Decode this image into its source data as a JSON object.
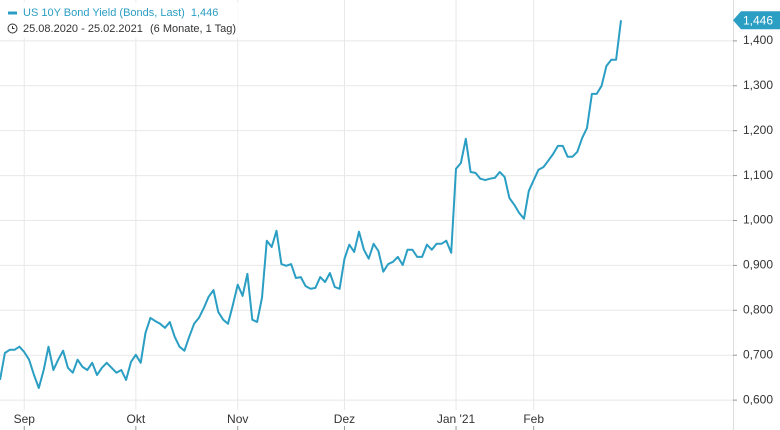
{
  "chart_data": {
    "type": "line",
    "period": "25.08.2020 - 25.02.2021",
    "period_note": "(6 Monate, 1 Tag)",
    "legend_value": "1,446",
    "categories": [
      null,
      null,
      null,
      null,
      null,
      "Sep",
      null,
      null,
      null,
      null,
      null,
      null,
      null,
      null,
      null,
      null,
      null,
      null,
      null,
      null,
      null,
      null,
      null,
      null,
      null,
      null,
      null,
      null,
      "Okt",
      null,
      null,
      null,
      null,
      null,
      null,
      null,
      null,
      null,
      null,
      null,
      null,
      null,
      null,
      null,
      null,
      null,
      null,
      null,
      null,
      "Nov",
      null,
      null,
      null,
      null,
      null,
      null,
      null,
      null,
      null,
      null,
      null,
      null,
      null,
      null,
      null,
      null,
      null,
      null,
      null,
      null,
      null,
      "Dez",
      null,
      null,
      null,
      null,
      null,
      null,
      null,
      null,
      null,
      null,
      null,
      null,
      null,
      null,
      null,
      null,
      null,
      null,
      null,
      null,
      null,
      null,
      "Jan '21",
      null,
      null,
      null,
      null,
      null,
      null,
      null,
      null,
      null,
      null,
      null,
      null,
      null,
      null,
      null,
      "Feb",
      null,
      null,
      null,
      null,
      null,
      null,
      null,
      null,
      null,
      null,
      null,
      null,
      null,
      null,
      null,
      null,
      null,
      null
    ],
    "series": [
      {
        "name": "US 10Y Bond Yield (Bonds, Last)",
        "color": "#2b9ec3",
        "values": [
          0.645,
          0.705,
          0.712,
          0.712,
          0.719,
          0.707,
          0.69,
          0.656,
          0.627,
          0.667,
          0.719,
          0.667,
          0.69,
          0.71,
          0.672,
          0.661,
          0.69,
          0.674,
          0.667,
          0.683,
          0.656,
          0.672,
          0.683,
          0.672,
          0.661,
          0.667,
          0.645,
          0.685,
          0.701,
          0.683,
          0.75,
          0.783,
          0.776,
          0.77,
          0.761,
          0.774,
          0.741,
          0.719,
          0.71,
          0.741,
          0.77,
          0.783,
          0.805,
          0.83,
          0.845,
          0.796,
          0.779,
          0.77,
          0.812,
          0.857,
          0.832,
          0.881,
          0.779,
          0.774,
          0.828,
          0.955,
          0.941,
          0.977,
          0.903,
          0.899,
          0.903,
          0.872,
          0.874,
          0.854,
          0.848,
          0.85,
          0.874,
          0.863,
          0.883,
          0.852,
          0.848,
          0.915,
          0.946,
          0.93,
          0.975,
          0.935,
          0.915,
          0.948,
          0.932,
          0.886,
          0.903,
          0.908,
          0.919,
          0.901,
          0.935,
          0.935,
          0.919,
          0.919,
          0.946,
          0.935,
          0.948,
          0.948,
          0.955,
          0.928,
          1.115,
          1.128,
          1.182,
          1.108,
          1.106,
          1.093,
          1.09,
          1.093,
          1.095,
          1.108,
          1.097,
          1.05,
          1.035,
          1.017,
          1.004,
          1.066,
          1.09,
          1.113,
          1.119,
          1.133,
          1.148,
          1.166,
          1.166,
          1.142,
          1.142,
          1.153,
          1.184,
          1.206,
          1.282,
          1.282,
          1.3,
          1.344,
          1.358,
          1.358,
          1.446
        ]
      }
    ],
    "ylim": [
      0.578,
      1.491
    ],
    "yticks": [
      {
        "value": 0.6,
        "label": "0,600"
      },
      {
        "value": 0.7,
        "label": "0,700"
      },
      {
        "value": 0.8,
        "label": "0,800"
      },
      {
        "value": 0.9,
        "label": "0,900"
      },
      {
        "value": 1.0,
        "label": "1,000"
      },
      {
        "value": 1.1,
        "label": "1,100"
      },
      {
        "value": 1.2,
        "label": "1,200"
      },
      {
        "value": 1.3,
        "label": "1,300"
      },
      {
        "value": 1.4,
        "label": "1,400"
      }
    ],
    "grid": true
  }
}
